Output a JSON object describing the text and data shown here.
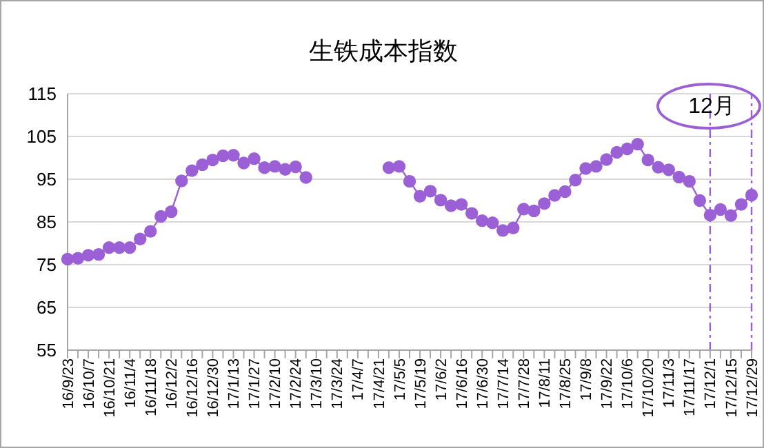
{
  "chart_data": {
    "type": "line",
    "title": "生铁成本指数",
    "categories": [
      "16/9/23",
      null,
      "16/10/7",
      null,
      "16/10/21",
      null,
      "16/11/4",
      null,
      "16/11/18",
      null,
      "16/12/2",
      null,
      "16/12/16",
      null,
      "16/12/30",
      null,
      "17/1/13",
      null,
      "17/1/27",
      null,
      "17/2/10",
      null,
      "17/2/24",
      null,
      "17/3/10",
      null,
      "17/3/24",
      null,
      "17/4/7",
      null,
      "17/4/21",
      null,
      "17/5/5",
      null,
      "17/5/19",
      null,
      "17/6/2",
      null,
      "17/6/16",
      null,
      "17/6/30",
      null,
      "17/7/14",
      null,
      "17/7/28",
      null,
      "17/8/11",
      null,
      "17/8/25",
      null,
      "17/9/8",
      null,
      "17/9/22",
      null,
      "17/10/6",
      null,
      "17/10/20",
      null,
      "17/11/3",
      null,
      "17/11/17",
      null,
      "17/12/1",
      null,
      "17/12/15",
      null,
      "17/12/29"
    ],
    "series": [
      {
        "color": "#9b5fd6",
        "values": [
          76.3,
          76.5,
          77.2,
          77.4,
          79,
          79,
          79,
          81,
          82.8,
          86.3,
          87.4,
          94.6,
          97,
          98.4,
          99.5,
          100.5,
          100.6,
          98.8,
          99.8,
          97.7,
          98,
          97.3,
          97.9,
          95.4,
          null,
          null,
          null,
          null,
          null,
          null,
          null,
          97.7,
          98.0,
          94.5,
          91,
          92.2,
          90.1,
          88.8,
          89.1,
          87,
          85.3,
          84.8,
          83,
          83.6,
          88,
          87.6,
          89.3,
          91.2,
          92.1,
          94.8,
          97.5,
          98,
          99.6,
          101.3,
          102.1,
          103.2,
          99.5,
          97.8,
          97.2,
          95.5,
          94.5,
          90,
          86.6,
          87.9,
          86.5,
          89.1,
          91.3
        ]
      }
    ],
    "ylim": [
      55,
      115
    ],
    "yticks": [
      55,
      65,
      75,
      85,
      95,
      105,
      115
    ],
    "grid": "y",
    "marker": "circle",
    "line_style": "solid",
    "ref_lines": [
      {
        "axis": "x",
        "value": "17/12/1",
        "color": "#9b5fd6",
        "line_style": "dashdot"
      },
      {
        "axis": "x",
        "value": "17/12/29",
        "color": "#9b5fd6",
        "line_style": "dashdot"
      }
    ],
    "annotations": [
      "12月"
    ]
  }
}
